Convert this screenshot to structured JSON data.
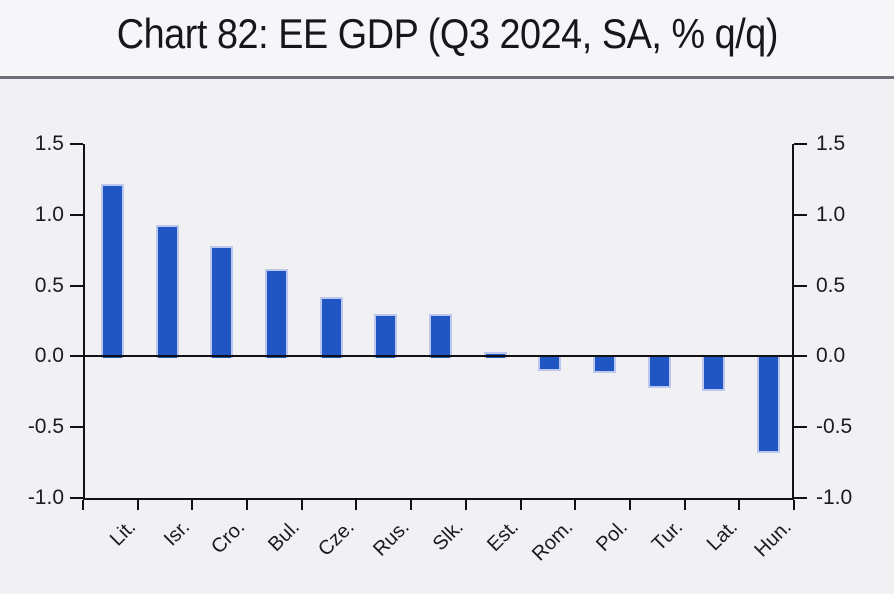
{
  "title": "Chart 82: EE GDP (Q3 2024, SA, % q/q)",
  "chart_data": {
    "type": "bar",
    "title": "Chart 82: EE GDP (Q3 2024, SA, % q/q)",
    "categories": [
      "Lit.",
      "Isr.",
      "Cro.",
      "Bul.",
      "Cze.",
      "Rus.",
      "Slk.",
      "Est.",
      "Rom.",
      "Pol.",
      "Tur.",
      "Lat.",
      "Hun."
    ],
    "values": [
      1.22,
      0.93,
      0.78,
      0.62,
      0.42,
      0.3,
      0.3,
      0.03,
      -0.09,
      -0.1,
      -0.21,
      -0.23,
      -0.67
    ],
    "xlabel": "",
    "ylabel": "",
    "ylim": [
      -1.0,
      1.5
    ],
    "y_ticks": [
      1.5,
      1.0,
      0.5,
      0.0,
      -0.5,
      -1.0
    ],
    "y_tick_labels": [
      "1.5",
      "1.0",
      "0.5",
      "0.0",
      "-0.5",
      "-1.0"
    ],
    "dual_y_axis": true,
    "grid": false,
    "legend": null,
    "bar_color": "#1f56c4",
    "bar_border_color": "#bcc8ee",
    "axis_color": "#111114",
    "background_color": "#f1f1f4",
    "title_background_color": "#f6f6f8",
    "divider_color": "#6f6e7a"
  }
}
